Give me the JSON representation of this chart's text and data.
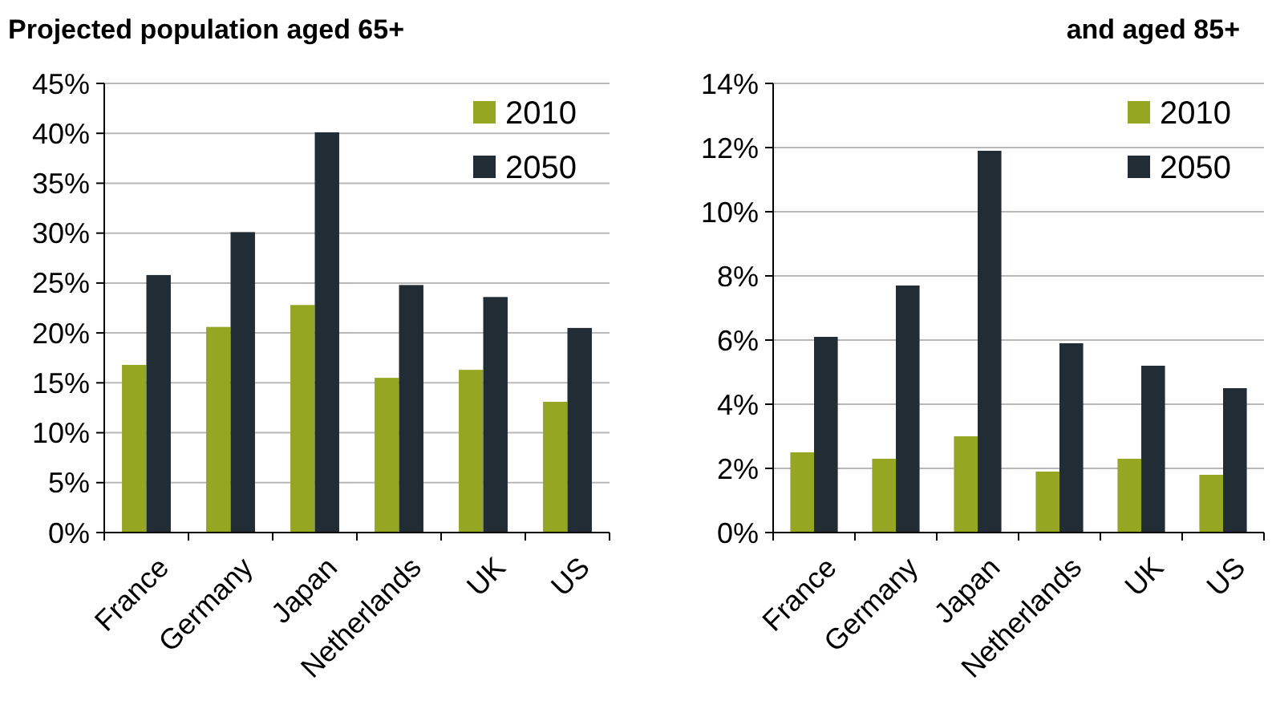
{
  "chart_data": [
    {
      "type": "bar",
      "title": "Projected population aged 65+",
      "categories": [
        "France",
        "Germany",
        "Japan",
        "Netherlands",
        "UK",
        "US"
      ],
      "series": [
        {
          "name": "2010",
          "color": "#95a623",
          "values": [
            16.8,
            20.6,
            22.8,
            15.5,
            16.3,
            13.1
          ]
        },
        {
          "name": "2050",
          "color": "#212c35",
          "values": [
            25.8,
            30.1,
            40.1,
            24.8,
            23.6,
            20.5
          ]
        }
      ],
      "ylim": [
        0,
        45
      ],
      "yticks": [
        {
          "value": 0,
          "label": "0%"
        },
        {
          "value": 5,
          "label": "5%"
        },
        {
          "value": 10,
          "label": "10%"
        },
        {
          "value": 15,
          "label": "15%"
        },
        {
          "value": 20,
          "label": "20%"
        },
        {
          "value": 25,
          "label": "25%"
        },
        {
          "value": 30,
          "label": "30%"
        },
        {
          "value": 35,
          "label": "35%"
        },
        {
          "value": 40,
          "label": "40%"
        },
        {
          "value": 45,
          "label": "45%"
        }
      ],
      "grid": "y",
      "legend": "top right"
    },
    {
      "type": "bar",
      "title": "and aged 85+",
      "categories": [
        "France",
        "Germany",
        "Japan",
        "Netherlands",
        "UK",
        "US"
      ],
      "series": [
        {
          "name": "2010",
          "color": "#95a623",
          "values": [
            2.5,
            2.3,
            3.0,
            1.9,
            2.3,
            1.8
          ]
        },
        {
          "name": "2050",
          "color": "#212c35",
          "values": [
            6.1,
            7.7,
            11.9,
            5.9,
            5.2,
            4.5
          ]
        }
      ],
      "ylim": [
        0,
        14
      ],
      "yticks": [
        {
          "value": 0,
          "label": "0%"
        },
        {
          "value": 2,
          "label": "2%"
        },
        {
          "value": 4,
          "label": "4%"
        },
        {
          "value": 6,
          "label": "6%"
        },
        {
          "value": 8,
          "label": "8%"
        },
        {
          "value": 10,
          "label": "10%"
        },
        {
          "value": 12,
          "label": "12%"
        },
        {
          "value": 14,
          "label": "14%"
        }
      ],
      "grid": "y",
      "legend": "top right"
    }
  ]
}
